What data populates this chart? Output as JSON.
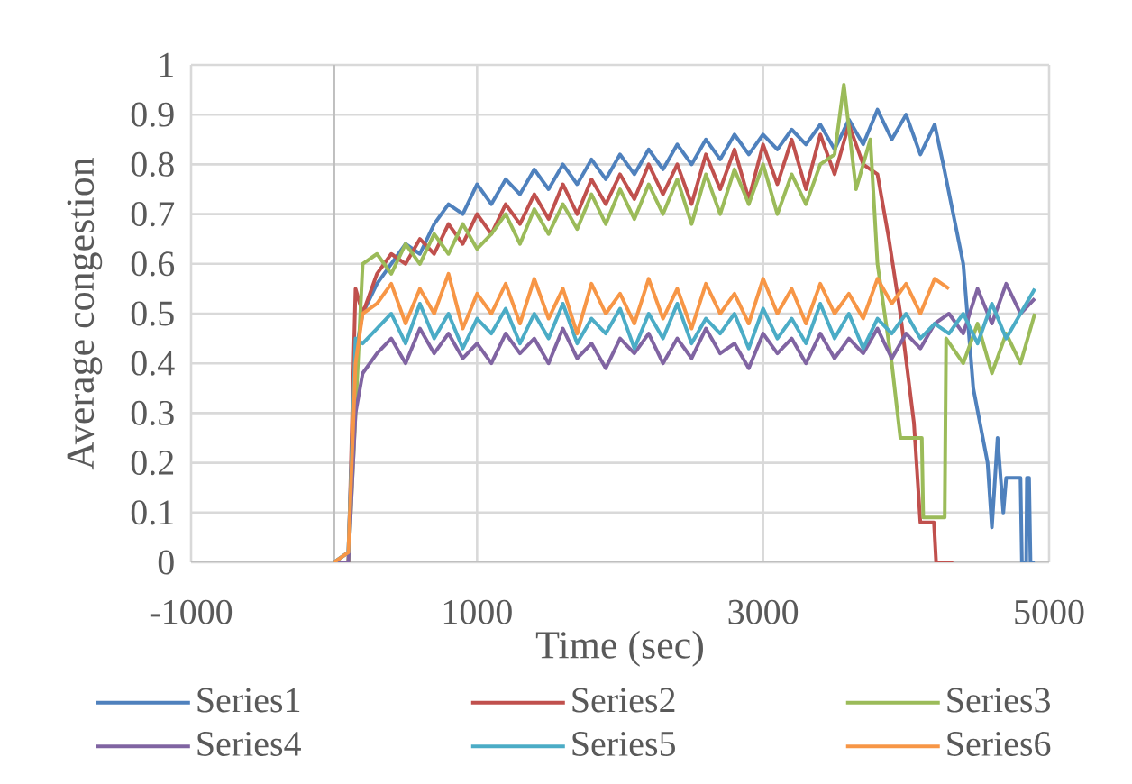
{
  "chart_data": {
    "type": "line",
    "xlabel": "Time (sec)",
    "ylabel": "Average congestion",
    "xlim": [
      -1000,
      5000
    ],
    "xticks": [
      -1000,
      1000,
      3000,
      5000
    ],
    "ylim": [
      0,
      1
    ],
    "yticks": [
      0,
      0.1,
      0.2,
      0.3,
      0.4,
      0.5,
      0.6,
      0.7,
      0.8,
      0.9,
      1
    ],
    "grid": true,
    "legend": "bottom",
    "marker": "none",
    "line_style": "solid",
    "series": [
      {
        "name": "Series1",
        "color": "#4f81bd",
        "x": [
          0,
          100,
          150,
          200,
          300,
          400,
          500,
          600,
          700,
          800,
          900,
          1000,
          1100,
          1200,
          1300,
          1400,
          1500,
          1600,
          1700,
          1800,
          1900,
          2000,
          2100,
          2200,
          2300,
          2400,
          2500,
          2600,
          2700,
          2800,
          2900,
          3000,
          3100,
          3200,
          3300,
          3400,
          3500,
          3600,
          3700,
          3800,
          3900,
          4000,
          4100,
          4200,
          4260,
          4330,
          4400,
          4470,
          4570,
          4600,
          4640,
          4680,
          4700,
          4800,
          4810,
          4840,
          4845,
          4860,
          4870,
          4900
        ],
        "values": [
          0,
          0.02,
          0.42,
          0.5,
          0.56,
          0.6,
          0.64,
          0.62,
          0.68,
          0.72,
          0.7,
          0.76,
          0.72,
          0.77,
          0.74,
          0.79,
          0.75,
          0.8,
          0.76,
          0.81,
          0.77,
          0.82,
          0.78,
          0.83,
          0.79,
          0.84,
          0.8,
          0.85,
          0.81,
          0.86,
          0.82,
          0.86,
          0.83,
          0.87,
          0.84,
          0.88,
          0.83,
          0.89,
          0.84,
          0.91,
          0.85,
          0.9,
          0.82,
          0.88,
          0.8,
          0.7,
          0.6,
          0.35,
          0.2,
          0.07,
          0.25,
          0.1,
          0.17,
          0.17,
          0,
          0,
          0.17,
          0.17,
          0,
          0
        ]
      },
      {
        "name": "Series2",
        "color": "#c0504d",
        "x": [
          0,
          100,
          150,
          200,
          300,
          400,
          500,
          600,
          700,
          800,
          900,
          1000,
          1100,
          1200,
          1300,
          1400,
          1500,
          1600,
          1700,
          1800,
          1900,
          2000,
          2100,
          2200,
          2300,
          2400,
          2500,
          2600,
          2700,
          2800,
          2900,
          3000,
          3100,
          3200,
          3300,
          3400,
          3500,
          3600,
          3700,
          3800,
          3880,
          3960,
          4055,
          4100,
          4195,
          4210,
          4330
        ],
        "values": [
          0,
          0,
          0.55,
          0.5,
          0.58,
          0.62,
          0.6,
          0.65,
          0.62,
          0.68,
          0.64,
          0.7,
          0.66,
          0.72,
          0.68,
          0.74,
          0.69,
          0.76,
          0.7,
          0.77,
          0.72,
          0.78,
          0.73,
          0.8,
          0.74,
          0.8,
          0.72,
          0.82,
          0.75,
          0.83,
          0.73,
          0.84,
          0.76,
          0.85,
          0.75,
          0.86,
          0.78,
          0.88,
          0.8,
          0.78,
          0.65,
          0.5,
          0.28,
          0.08,
          0.08,
          0,
          0
        ]
      },
      {
        "name": "Series3",
        "color": "#9bbb59",
        "x": [
          0,
          100,
          150,
          200,
          300,
          400,
          500,
          600,
          700,
          800,
          900,
          1000,
          1100,
          1200,
          1300,
          1400,
          1500,
          1600,
          1700,
          1800,
          1900,
          2000,
          2100,
          2200,
          2300,
          2400,
          2500,
          2600,
          2700,
          2800,
          2900,
          3000,
          3100,
          3200,
          3300,
          3400,
          3500,
          3565,
          3650,
          3750,
          3800,
          3900,
          3960,
          4030,
          4110,
          4120,
          4270,
          4280,
          4400,
          4500,
          4600,
          4700,
          4800,
          4900
        ],
        "values": [
          0,
          0,
          0.3,
          0.6,
          0.62,
          0.58,
          0.64,
          0.6,
          0.66,
          0.62,
          0.68,
          0.63,
          0.66,
          0.7,
          0.64,
          0.71,
          0.66,
          0.72,
          0.67,
          0.74,
          0.68,
          0.75,
          0.69,
          0.76,
          0.7,
          0.77,
          0.68,
          0.78,
          0.7,
          0.79,
          0.72,
          0.8,
          0.7,
          0.78,
          0.72,
          0.8,
          0.82,
          0.96,
          0.75,
          0.85,
          0.6,
          0.4,
          0.25,
          0.25,
          0.25,
          0.09,
          0.09,
          0.45,
          0.4,
          0.48,
          0.38,
          0.46,
          0.4,
          0.5
        ]
      },
      {
        "name": "Series4",
        "color": "#8064a2",
        "x": [
          0,
          100,
          150,
          200,
          300,
          400,
          500,
          600,
          700,
          800,
          900,
          1000,
          1100,
          1200,
          1300,
          1400,
          1500,
          1600,
          1700,
          1800,
          1900,
          2000,
          2100,
          2200,
          2300,
          2400,
          2500,
          2600,
          2700,
          2800,
          2900,
          3000,
          3100,
          3200,
          3300,
          3400,
          3500,
          3600,
          3700,
          3800,
          3900,
          4000,
          4100,
          4200,
          4300,
          4400,
          4500,
          4600,
          4700,
          4800,
          4900
        ],
        "values": [
          0,
          0,
          0.3,
          0.38,
          0.42,
          0.45,
          0.4,
          0.47,
          0.42,
          0.46,
          0.41,
          0.44,
          0.4,
          0.46,
          0.42,
          0.45,
          0.4,
          0.47,
          0.41,
          0.44,
          0.39,
          0.45,
          0.42,
          0.46,
          0.4,
          0.45,
          0.41,
          0.47,
          0.42,
          0.44,
          0.39,
          0.46,
          0.42,
          0.45,
          0.4,
          0.46,
          0.41,
          0.45,
          0.42,
          0.47,
          0.41,
          0.46,
          0.43,
          0.48,
          0.5,
          0.46,
          0.55,
          0.48,
          0.56,
          0.5,
          0.53
        ]
      },
      {
        "name": "Series5",
        "color": "#4bacc6",
        "x": [
          0,
          100,
          150,
          200,
          300,
          400,
          500,
          600,
          700,
          800,
          900,
          1000,
          1100,
          1200,
          1300,
          1400,
          1500,
          1600,
          1700,
          1800,
          1900,
          2000,
          2100,
          2200,
          2300,
          2400,
          2500,
          2600,
          2700,
          2800,
          2900,
          3000,
          3100,
          3200,
          3300,
          3400,
          3500,
          3600,
          3700,
          3800,
          3900,
          4000,
          4100,
          4200,
          4300,
          4400,
          4500,
          4600,
          4700,
          4800,
          4900
        ],
        "values": [
          0,
          0.02,
          0.45,
          0.44,
          0.47,
          0.5,
          0.44,
          0.52,
          0.45,
          0.5,
          0.43,
          0.49,
          0.46,
          0.51,
          0.44,
          0.5,
          0.45,
          0.52,
          0.44,
          0.49,
          0.46,
          0.51,
          0.43,
          0.5,
          0.45,
          0.52,
          0.44,
          0.49,
          0.46,
          0.5,
          0.43,
          0.51,
          0.45,
          0.49,
          0.44,
          0.52,
          0.45,
          0.5,
          0.43,
          0.49,
          0.46,
          0.5,
          0.45,
          0.48,
          0.46,
          0.5,
          0.44,
          0.52,
          0.45,
          0.5,
          0.55
        ]
      },
      {
        "name": "Series6",
        "color": "#f79646",
        "x": [
          0,
          100,
          150,
          200,
          300,
          400,
          500,
          600,
          700,
          800,
          900,
          1000,
          1100,
          1200,
          1300,
          1400,
          1500,
          1600,
          1700,
          1800,
          1900,
          2000,
          2100,
          2200,
          2300,
          2400,
          2500,
          2600,
          2700,
          2800,
          2900,
          3000,
          3100,
          3200,
          3300,
          3400,
          3500,
          3600,
          3700,
          3800,
          3900,
          4000,
          4100,
          4200,
          4300
        ],
        "values": [
          0,
          0.02,
          0.4,
          0.5,
          0.52,
          0.56,
          0.48,
          0.55,
          0.5,
          0.58,
          0.47,
          0.54,
          0.5,
          0.56,
          0.48,
          0.57,
          0.49,
          0.55,
          0.46,
          0.56,
          0.5,
          0.54,
          0.48,
          0.57,
          0.49,
          0.55,
          0.47,
          0.56,
          0.5,
          0.54,
          0.48,
          0.57,
          0.5,
          0.55,
          0.48,
          0.56,
          0.5,
          0.54,
          0.49,
          0.57,
          0.52,
          0.56,
          0.5,
          0.57,
          0.55
        ]
      }
    ]
  }
}
